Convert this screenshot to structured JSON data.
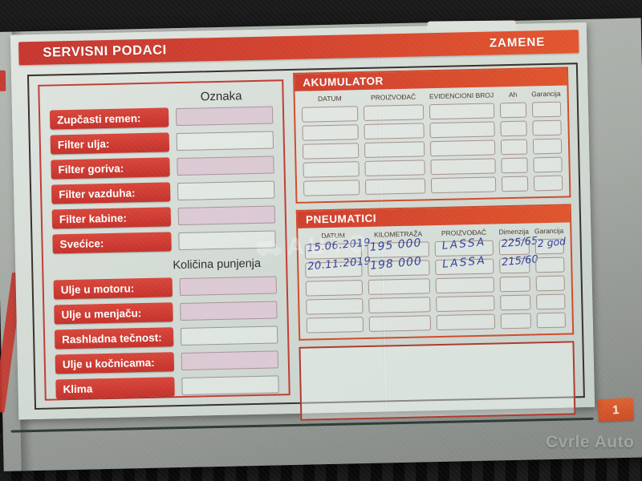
{
  "banner": {
    "title": "SERVISNI PODACI",
    "right_label": "ZAMENE"
  },
  "left_panel": {
    "column_header": "Oznaka",
    "section2_header": "Količina punjenja",
    "section1": {
      "rows": [
        {
          "label": "Zupčasti remen:",
          "fill": "pink"
        },
        {
          "label": "Filter ulja:",
          "fill": "plain"
        },
        {
          "label": "Filter goriva:",
          "fill": "pink"
        },
        {
          "label": "Filter vazduha:",
          "fill": "plain"
        },
        {
          "label": "Filter kabine:",
          "fill": "pink"
        },
        {
          "label": "Svećice:",
          "fill": "plain"
        }
      ]
    },
    "section2": {
      "rows": [
        {
          "label": "Ulje u motoru:",
          "fill": "pink"
        },
        {
          "label": "Ulje u menjaču:",
          "fill": "pink"
        },
        {
          "label": "Rashladna tečnost:",
          "fill": "plain"
        },
        {
          "label": "Ulje u kočnicama:",
          "fill": "pink"
        },
        {
          "label": "Klima",
          "fill": "plain"
        }
      ]
    }
  },
  "akumulator": {
    "title": "AKUMULATOR",
    "columns": [
      "DATUM",
      "PROIZVOĐAČ",
      "EVIDENCIONI BROJ",
      "Ah",
      "Garancija"
    ],
    "empty_row_count": 5
  },
  "pneumatici": {
    "title": "PNEUMATICI",
    "columns": [
      "DATUM",
      "KILOMETRAŽA",
      "PROIZVOĐAČ",
      "Dimenzija",
      "Garancija"
    ],
    "rows": [
      [
        "15.06.2019",
        "195 000",
        "LASSA",
        "225/65",
        "2 god"
      ],
      [
        "20.11.2019",
        "198 000",
        "LASSA",
        "215/60",
        ""
      ]
    ],
    "empty_row_count": 3
  },
  "watermark": {
    "center_text": "AUTO"
  },
  "footer": {
    "page_number": "1",
    "site_watermark": "Cvrle Auto"
  },
  "colors": {
    "banner_red": "#c63730",
    "banner_orange": "#e2562e",
    "label_red": "#c4322b",
    "table_orange": "#cf4c2a",
    "notes_border": "#ad392f",
    "page_bg": "#d5dcd6",
    "ink_blue": "#35429c",
    "deck_gray": "#a6aaa5",
    "background_black": "#141414"
  }
}
